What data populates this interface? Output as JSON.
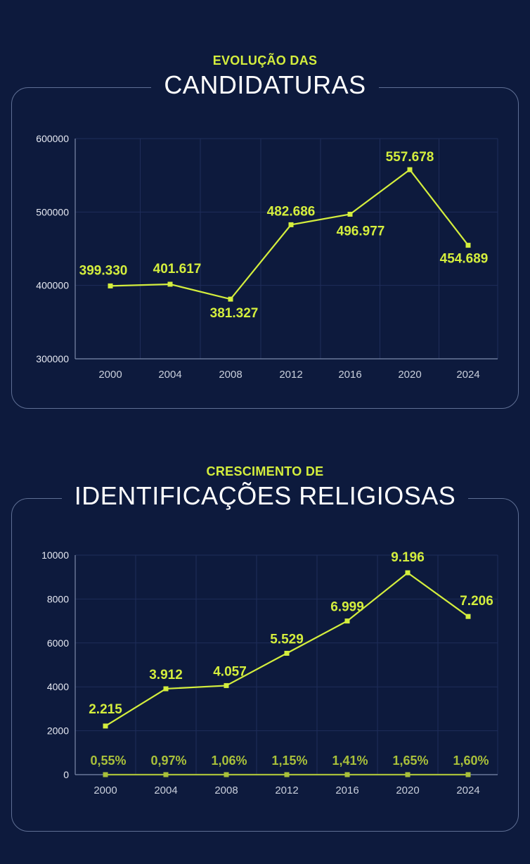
{
  "colors": {
    "background": "#0d1a3d",
    "accent": "#d4ee3d",
    "accent_dim": "#a9c03a",
    "panel_border": "#5f6f94",
    "grid": "#1f2d5a"
  },
  "chart_data": [
    {
      "type": "line",
      "eyebrow": "EVOLUÇÃO DAS",
      "title": "CANDIDATURAS",
      "categories": [
        "2000",
        "2004",
        "2008",
        "2012",
        "2016",
        "2020",
        "2024"
      ],
      "series": [
        {
          "values": [
            399330,
            401617,
            381327,
            482686,
            496977,
            557678,
            454689
          ],
          "labels": [
            "399.330",
            "401.617",
            "381.327",
            "482.686",
            "496.977",
            "557.678",
            "454.689"
          ]
        }
      ],
      "yticks": [
        "600000",
        "500000",
        "400000",
        "300000"
      ],
      "ylim": [
        300000,
        600000
      ],
      "grid": true
    },
    {
      "type": "line",
      "eyebrow": "CRESCIMENTO DE",
      "title": "IDENTIFICAÇÕES RELIGIOSAS",
      "categories": [
        "2000",
        "2004",
        "2008",
        "2012",
        "2016",
        "2020",
        "2024"
      ],
      "series": [
        {
          "values": [
            2215,
            3912,
            4057,
            5529,
            6999,
            9196,
            7206
          ],
          "labels": [
            "2.215",
            "3.912",
            "4.057",
            "5.529",
            "6.999",
            "9.196",
            "7.206"
          ]
        },
        {
          "values": [
            0.55,
            0.97,
            1.06,
            1.15,
            1.41,
            1.65,
            1.6
          ],
          "labels": [
            "0,55%",
            "0,97%",
            "1,06%",
            "1,15%",
            "1,41%",
            "1,65%",
            "1,60%"
          ]
        }
      ],
      "yticks": [
        "10000",
        "8000",
        "6000",
        "4000",
        "2000",
        "0"
      ],
      "ylim": [
        0,
        10000
      ],
      "grid": true
    }
  ]
}
